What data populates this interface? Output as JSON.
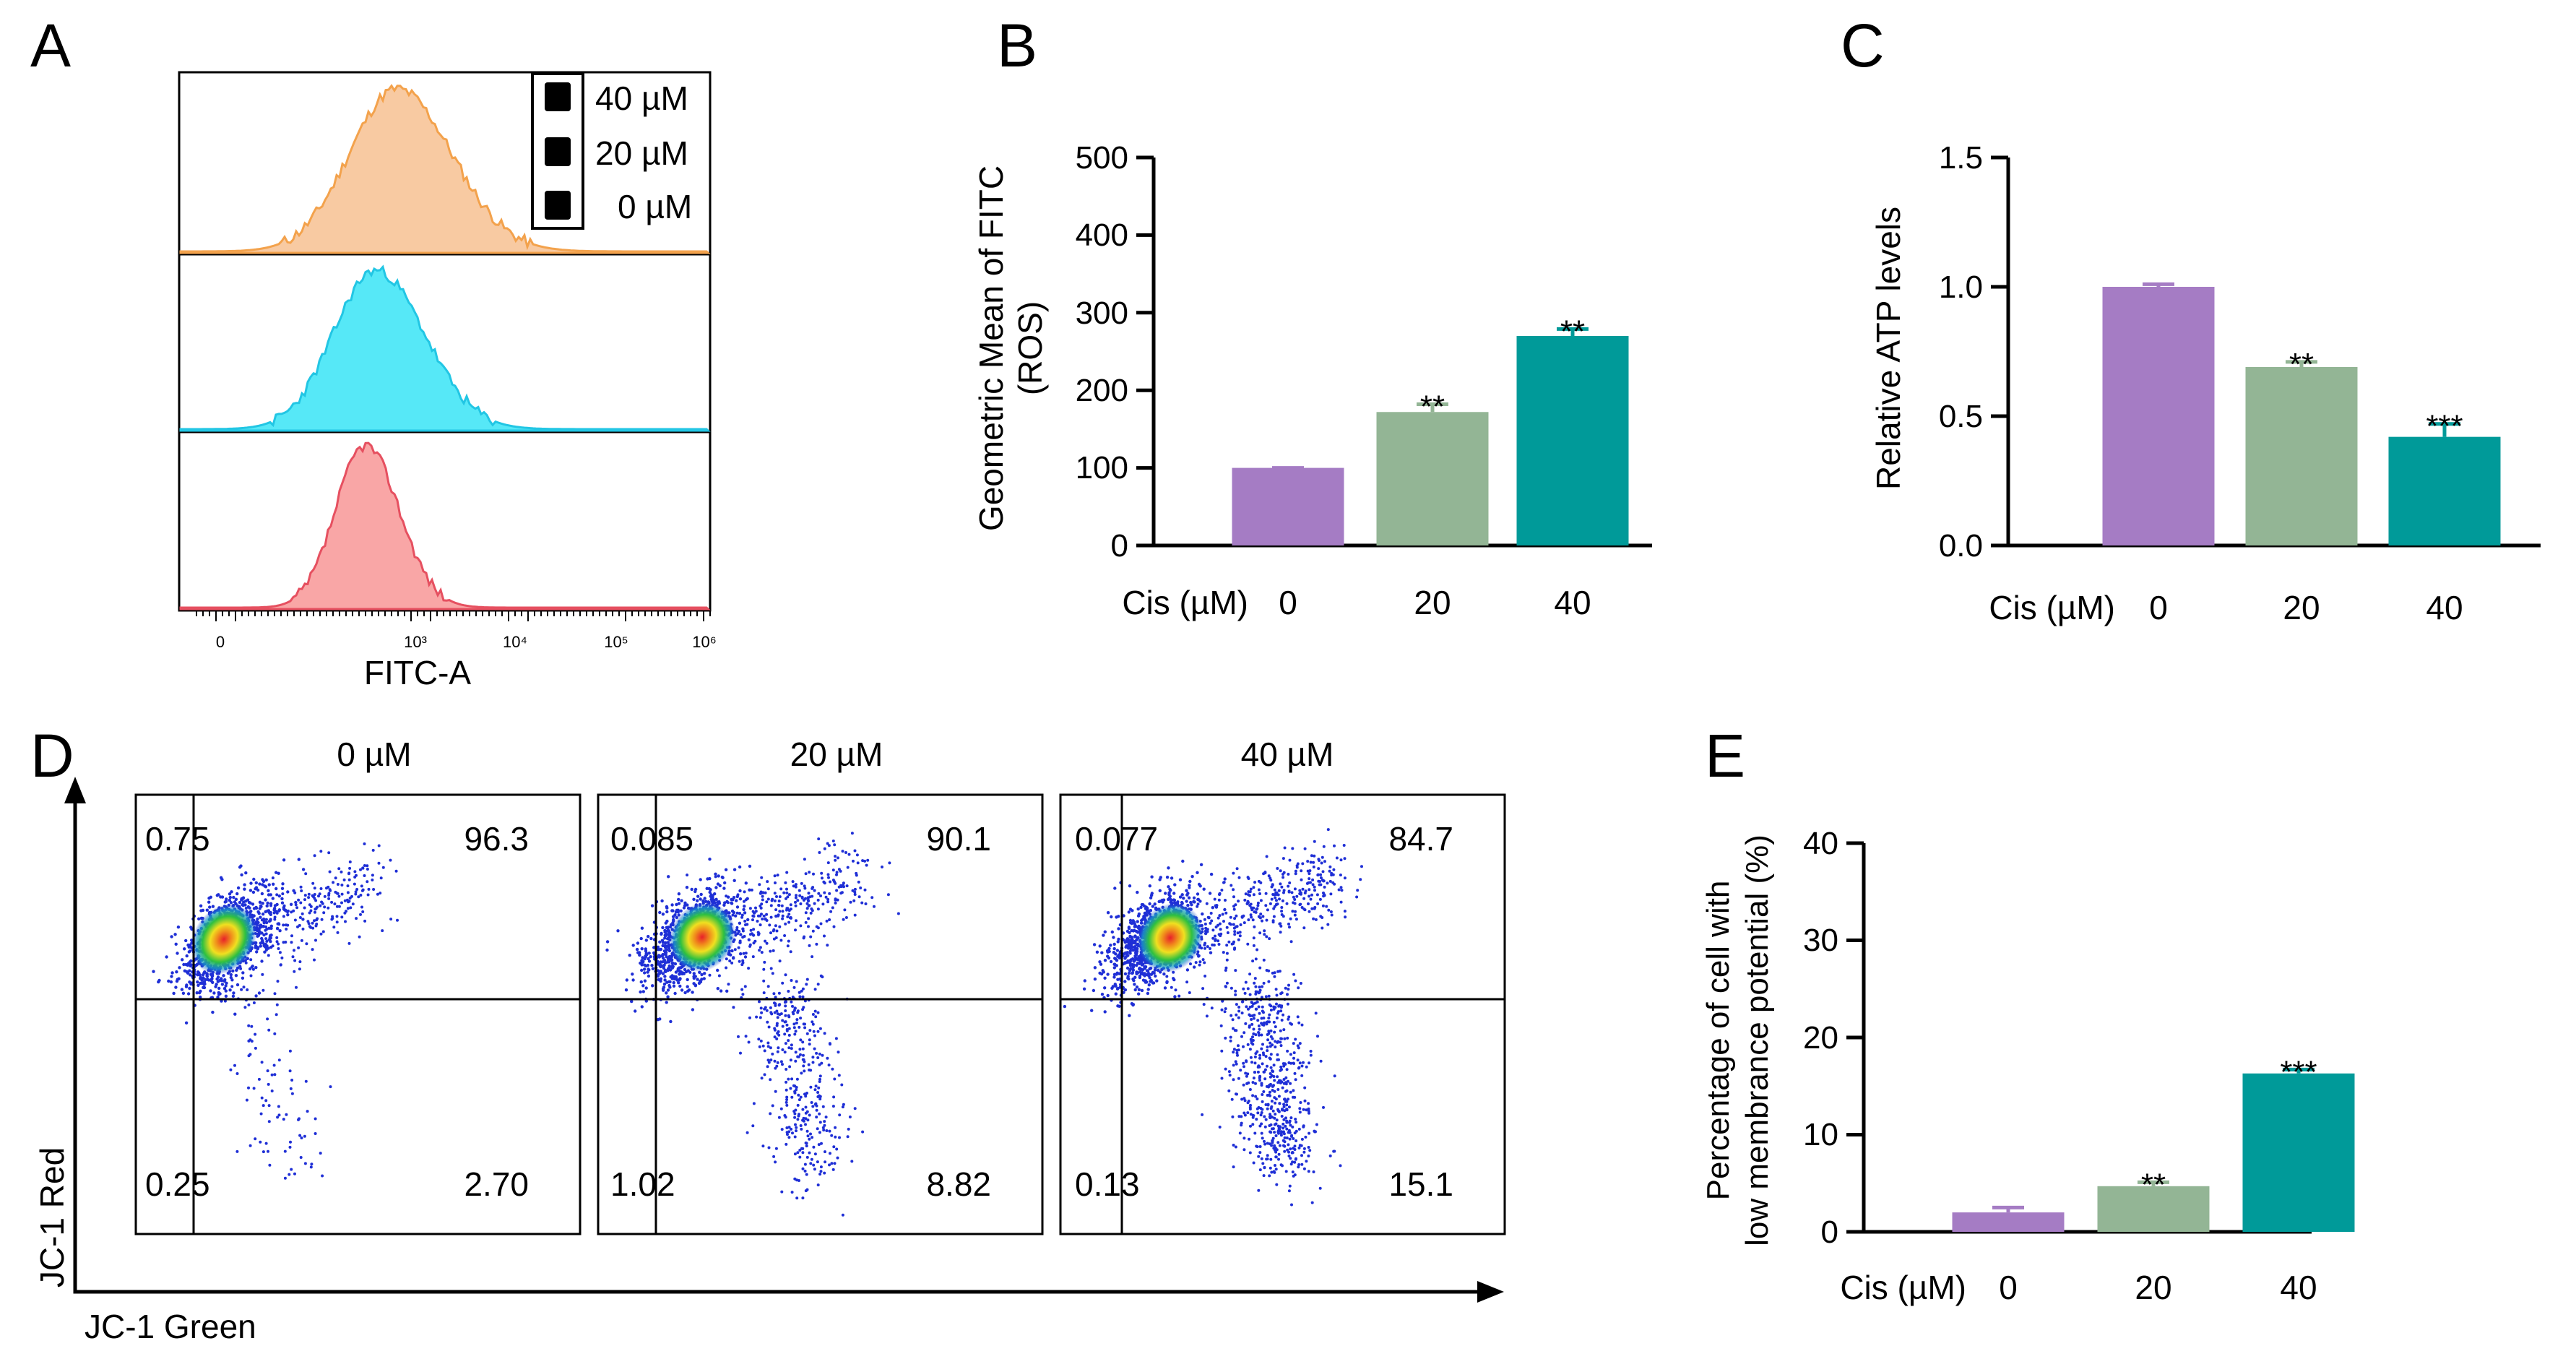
{
  "figure": {
    "panel_letters": [
      "A",
      "B",
      "C",
      "D",
      "E"
    ]
  },
  "colors": {
    "c0": "#a57cc4",
    "c20": "#93b595",
    "c40": "#009a99",
    "h0_fill": "#f9a6a6",
    "h0_line": "#e65060",
    "h20_fill": "#56e8f7",
    "h20_line": "#22c6e4",
    "h40_fill": "#f8caa2",
    "h40_line": "#f3a24c"
  },
  "chart_data": [
    {
      "panel": "A",
      "type": "area",
      "title": "",
      "xlabel": "FITC-A",
      "x_scale": "log",
      "tick_labels": [
        "0",
        "10³",
        "10⁴",
        "10⁵",
        "10⁶"
      ],
      "legend": [
        "40 µM",
        "20 µM",
        "0 µM"
      ],
      "legend_position": "top-right",
      "series": [
        {
          "name": "0 µM",
          "peak_log10": 2.75,
          "spread": 0.28
        },
        {
          "name": "20 µM",
          "peak_log10": 2.85,
          "spread": 0.4
        },
        {
          "name": "40 µM",
          "peak_log10": 3.05,
          "spread": 0.45
        }
      ]
    },
    {
      "panel": "B",
      "type": "bar",
      "ylabel_lines": [
        "Geometric Mean of FITC",
        "(ROS)"
      ],
      "xlabel": "Cis (µM)",
      "categories": [
        "0",
        "20",
        "40"
      ],
      "values": [
        100,
        172,
        270
      ],
      "errors": [
        0,
        10,
        9
      ],
      "significance": [
        "",
        "**",
        "**"
      ],
      "ylim": [
        0,
        500
      ],
      "yticks": [
        "0",
        "100",
        "200",
        "300",
        "400",
        "500"
      ]
    },
    {
      "panel": "C",
      "type": "bar",
      "ylabel_lines": [
        "Relative ATP levels"
      ],
      "xlabel": "Cis (µM)",
      "categories": [
        "0",
        "20",
        "40"
      ],
      "values": [
        1.0,
        0.69,
        0.42
      ],
      "errors": [
        0.01,
        0.02,
        0.05
      ],
      "significance": [
        "",
        "**",
        "***"
      ],
      "ylim": [
        0,
        1.5
      ],
      "yticks": [
        "0.0",
        "0.5",
        "1.0",
        "1.5"
      ]
    },
    {
      "panel": "D",
      "type": "scatter",
      "ylabel": "JC-1 Red",
      "xlabel": "JC-1 Green",
      "plots": [
        {
          "title": "0 µM",
          "quadrants": {
            "ul": "0.75",
            "ur": "96.3",
            "ll": "0.25",
            "lr": "2.70"
          }
        },
        {
          "title": "20 µM",
          "quadrants": {
            "ul": "0.085",
            "ur": "90.1",
            "ll": "1.02",
            "lr": "8.82"
          }
        },
        {
          "title": "40 µM",
          "quadrants": {
            "ul": "0.077",
            "ur": "84.7",
            "ll": "0.13",
            "lr": "15.1"
          }
        }
      ]
    },
    {
      "panel": "E",
      "type": "bar",
      "ylabel_lines": [
        "Percentage of cell with",
        "low membrance potential (%)"
      ],
      "xlabel": "Cis (µM)",
      "categories": [
        "0",
        "20",
        "40"
      ],
      "values": [
        2.0,
        4.7,
        16.3
      ],
      "errors": [
        0.5,
        0.4,
        0.4
      ],
      "significance": [
        "",
        "**",
        "***"
      ],
      "ylim": [
        0,
        40
      ],
      "yticks": [
        "0",
        "10",
        "20",
        "30",
        "40"
      ]
    }
  ]
}
